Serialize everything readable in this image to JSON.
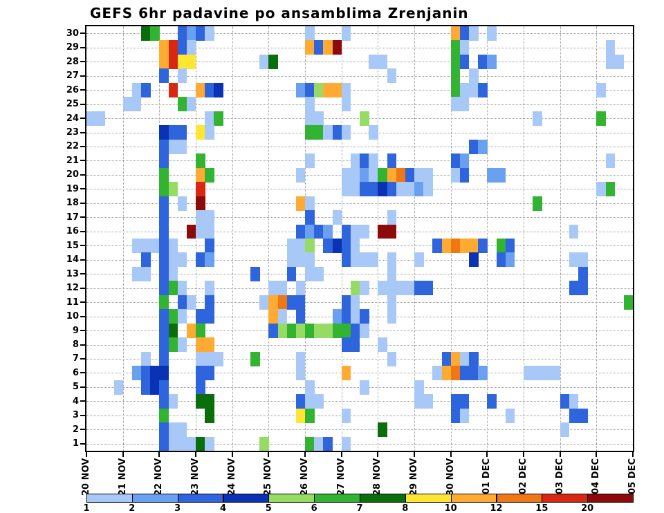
{
  "chart_data": {
    "type": "heatmap",
    "title": "GEFS 6hr padavine po ansamblima Zrenjanin",
    "x_tick_labels": [
      "20 NOV",
      "21 NOV",
      "22 NOV",
      "23 NOV",
      "24 NOV",
      "25 NOV",
      "26 NOV",
      "27 NOV",
      "28 NOV",
      "29 NOV",
      "30 NOV",
      "01 DEC",
      "02 DEC",
      "03 DEC",
      "04 DEC",
      "05 DEC"
    ],
    "steps_per_day": 4,
    "n_cols": 60,
    "ensemble_members": [
      1,
      2,
      3,
      4,
      5,
      6,
      7,
      8,
      9,
      10,
      11,
      12,
      13,
      14,
      15,
      16,
      17,
      18,
      19,
      20,
      21,
      22,
      23,
      24,
      25,
      26,
      27,
      28,
      29,
      30
    ],
    "grid": true,
    "background_color": "#ffffff",
    "axis_color": "#000000",
    "gridline_color": "#9a9a9a",
    "colorbar": {
      "position": "bottom",
      "tick_labels": [
        "1",
        "2",
        "3",
        "4",
        "5",
        "6",
        "7",
        "8",
        "10",
        "12",
        "15",
        "20"
      ],
      "levels": [
        1,
        2,
        3,
        4,
        5,
        6,
        7,
        8,
        10,
        12,
        15,
        20
      ],
      "colors": [
        "#a8c8f8",
        "#6aa0f0",
        "#2e64dc",
        "#0a32b4",
        "#96dc64",
        "#32b432",
        "#0a6e0a",
        "#ffe632",
        "#ffaa32",
        "#f07814",
        "#d82814",
        "#8c0a0a"
      ]
    },
    "cells_format": "[ensemble_member, six_hour_step_index_from_20NOV, level_mm]",
    "cells": [
      [
        30,
        6,
        7
      ],
      [
        30,
        7,
        6
      ],
      [
        30,
        10,
        3
      ],
      [
        30,
        11,
        2
      ],
      [
        30,
        12,
        3
      ],
      [
        30,
        13,
        1
      ],
      [
        30,
        24,
        1
      ],
      [
        30,
        28,
        1
      ],
      [
        30,
        40,
        10
      ],
      [
        30,
        41,
        3
      ],
      [
        30,
        42,
        1
      ],
      [
        30,
        44,
        1
      ],
      [
        29,
        8,
        10
      ],
      [
        29,
        9,
        15
      ],
      [
        29,
        10,
        3
      ],
      [
        29,
        11,
        1
      ],
      [
        29,
        24,
        10
      ],
      [
        29,
        25,
        3
      ],
      [
        29,
        26,
        10
      ],
      [
        29,
        27,
        20
      ],
      [
        29,
        40,
        6
      ],
      [
        29,
        41,
        1
      ],
      [
        29,
        57,
        1
      ],
      [
        28,
        8,
        10
      ],
      [
        28,
        9,
        15
      ],
      [
        28,
        10,
        8
      ],
      [
        28,
        11,
        8
      ],
      [
        28,
        19,
        1
      ],
      [
        28,
        20,
        7
      ],
      [
        28,
        31,
        1
      ],
      [
        28,
        32,
        1
      ],
      [
        28,
        40,
        6
      ],
      [
        28,
        41,
        3
      ],
      [
        28,
        43,
        3
      ],
      [
        28,
        44,
        2
      ],
      [
        28,
        57,
        1
      ],
      [
        28,
        58,
        1
      ],
      [
        27,
        8,
        3
      ],
      [
        27,
        10,
        1
      ],
      [
        27,
        33,
        1
      ],
      [
        27,
        40,
        6
      ],
      [
        27,
        42,
        1
      ],
      [
        26,
        5,
        1
      ],
      [
        26,
        6,
        3
      ],
      [
        26,
        9,
        15
      ],
      [
        26,
        12,
        10
      ],
      [
        26,
        13,
        3
      ],
      [
        26,
        14,
        4
      ],
      [
        26,
        23,
        2
      ],
      [
        26,
        24,
        3
      ],
      [
        26,
        25,
        5
      ],
      [
        26,
        26,
        10
      ],
      [
        26,
        27,
        10
      ],
      [
        26,
        28,
        1
      ],
      [
        26,
        40,
        6
      ],
      [
        26,
        41,
        1
      ],
      [
        26,
        42,
        1
      ],
      [
        26,
        43,
        3
      ],
      [
        26,
        56,
        1
      ],
      [
        25,
        4,
        1
      ],
      [
        25,
        5,
        1
      ],
      [
        25,
        10,
        6
      ],
      [
        25,
        11,
        1
      ],
      [
        25,
        24,
        1
      ],
      [
        25,
        28,
        1
      ],
      [
        25,
        40,
        1
      ],
      [
        25,
        41,
        1
      ],
      [
        24,
        0,
        1
      ],
      [
        24,
        1,
        1
      ],
      [
        24,
        13,
        1
      ],
      [
        24,
        14,
        6
      ],
      [
        24,
        24,
        1
      ],
      [
        24,
        25,
        1
      ],
      [
        24,
        30,
        5
      ],
      [
        24,
        49,
        1
      ],
      [
        24,
        56,
        6
      ],
      [
        23,
        8,
        4
      ],
      [
        23,
        9,
        3
      ],
      [
        23,
        10,
        3
      ],
      [
        23,
        12,
        8
      ],
      [
        23,
        13,
        1
      ],
      [
        23,
        24,
        6
      ],
      [
        23,
        25,
        6
      ],
      [
        23,
        26,
        1
      ],
      [
        23,
        27,
        3
      ],
      [
        23,
        28,
        1
      ],
      [
        23,
        31,
        1
      ],
      [
        22,
        8,
        3
      ],
      [
        22,
        9,
        1
      ],
      [
        22,
        10,
        1
      ],
      [
        22,
        42,
        3
      ],
      [
        22,
        43,
        2
      ],
      [
        21,
        8,
        3
      ],
      [
        21,
        12,
        6
      ],
      [
        21,
        24,
        1
      ],
      [
        21,
        29,
        1
      ],
      [
        21,
        30,
        3
      ],
      [
        21,
        31,
        1
      ],
      [
        21,
        33,
        3
      ],
      [
        21,
        40,
        3
      ],
      [
        21,
        41,
        2
      ],
      [
        21,
        57,
        1
      ],
      [
        20,
        8,
        6
      ],
      [
        20,
        12,
        10
      ],
      [
        20,
        13,
        6
      ],
      [
        20,
        23,
        1
      ],
      [
        20,
        28,
        1
      ],
      [
        20,
        29,
        1
      ],
      [
        20,
        30,
        2
      ],
      [
        20,
        31,
        1
      ],
      [
        20,
        32,
        6
      ],
      [
        20,
        33,
        10
      ],
      [
        20,
        34,
        12
      ],
      [
        20,
        35,
        3
      ],
      [
        20,
        36,
        1
      ],
      [
        20,
        37,
        1
      ],
      [
        20,
        40,
        1
      ],
      [
        20,
        41,
        3
      ],
      [
        20,
        44,
        2
      ],
      [
        20,
        45,
        2
      ],
      [
        19,
        8,
        6
      ],
      [
        19,
        9,
        5
      ],
      [
        19,
        12,
        15
      ],
      [
        19,
        28,
        1
      ],
      [
        19,
        29,
        1
      ],
      [
        19,
        30,
        3
      ],
      [
        19,
        31,
        3
      ],
      [
        19,
        32,
        4
      ],
      [
        19,
        33,
        3
      ],
      [
        19,
        34,
        1
      ],
      [
        19,
        35,
        1
      ],
      [
        19,
        36,
        2
      ],
      [
        19,
        37,
        1
      ],
      [
        19,
        56,
        1
      ],
      [
        19,
        57,
        6
      ],
      [
        18,
        8,
        3
      ],
      [
        18,
        10,
        1
      ],
      [
        18,
        12,
        20
      ],
      [
        18,
        23,
        10
      ],
      [
        18,
        24,
        1
      ],
      [
        18,
        49,
        6
      ],
      [
        17,
        8,
        3
      ],
      [
        17,
        12,
        1
      ],
      [
        17,
        13,
        1
      ],
      [
        17,
        24,
        3
      ],
      [
        17,
        27,
        1
      ],
      [
        17,
        33,
        1
      ],
      [
        16,
        8,
        3
      ],
      [
        16,
        11,
        20
      ],
      [
        16,
        12,
        1
      ],
      [
        16,
        13,
        1
      ],
      [
        16,
        23,
        3
      ],
      [
        16,
        24,
        2
      ],
      [
        16,
        25,
        3
      ],
      [
        16,
        26,
        2
      ],
      [
        16,
        28,
        3
      ],
      [
        16,
        29,
        1
      ],
      [
        16,
        30,
        1
      ],
      [
        16,
        32,
        20
      ],
      [
        16,
        33,
        20
      ],
      [
        16,
        53,
        1
      ],
      [
        15,
        5,
        1
      ],
      [
        15,
        6,
        1
      ],
      [
        15,
        7,
        1
      ],
      [
        15,
        8,
        3
      ],
      [
        15,
        9,
        1
      ],
      [
        15,
        13,
        3
      ],
      [
        15,
        22,
        1
      ],
      [
        15,
        23,
        1
      ],
      [
        15,
        24,
        5
      ],
      [
        15,
        26,
        3
      ],
      [
        15,
        27,
        4
      ],
      [
        15,
        28,
        3
      ],
      [
        15,
        29,
        1
      ],
      [
        15,
        38,
        3
      ],
      [
        15,
        39,
        10
      ],
      [
        15,
        40,
        12
      ],
      [
        15,
        41,
        10
      ],
      [
        15,
        42,
        10
      ],
      [
        15,
        43,
        3
      ],
      [
        15,
        45,
        6
      ],
      [
        15,
        46,
        3
      ],
      [
        14,
        6,
        3
      ],
      [
        14,
        8,
        3
      ],
      [
        14,
        9,
        1
      ],
      [
        14,
        10,
        1
      ],
      [
        14,
        12,
        3
      ],
      [
        14,
        13,
        2
      ],
      [
        14,
        22,
        1
      ],
      [
        14,
        23,
        1
      ],
      [
        14,
        24,
        1
      ],
      [
        14,
        28,
        3
      ],
      [
        14,
        29,
        1
      ],
      [
        14,
        30,
        1
      ],
      [
        14,
        31,
        1
      ],
      [
        14,
        33,
        1
      ],
      [
        14,
        36,
        1
      ],
      [
        14,
        42,
        4
      ],
      [
        14,
        45,
        3
      ],
      [
        14,
        46,
        2
      ],
      [
        14,
        53,
        1
      ],
      [
        14,
        54,
        1
      ],
      [
        13,
        5,
        1
      ],
      [
        13,
        6,
        1
      ],
      [
        13,
        8,
        3
      ],
      [
        13,
        9,
        1
      ],
      [
        13,
        18,
        3
      ],
      [
        13,
        22,
        3
      ],
      [
        13,
        24,
        1
      ],
      [
        13,
        25,
        1
      ],
      [
        13,
        33,
        1
      ],
      [
        13,
        54,
        3
      ],
      [
        12,
        8,
        3
      ],
      [
        12,
        9,
        6
      ],
      [
        12,
        10,
        1
      ],
      [
        12,
        13,
        1
      ],
      [
        12,
        20,
        1
      ],
      [
        12,
        21,
        1
      ],
      [
        12,
        23,
        1
      ],
      [
        12,
        29,
        5
      ],
      [
        12,
        30,
        1
      ],
      [
        12,
        32,
        1
      ],
      [
        12,
        33,
        1
      ],
      [
        12,
        34,
        1
      ],
      [
        12,
        35,
        1
      ],
      [
        12,
        36,
        3
      ],
      [
        12,
        37,
        3
      ],
      [
        12,
        53,
        3
      ],
      [
        12,
        54,
        3
      ],
      [
        11,
        8,
        6
      ],
      [
        11,
        10,
        3
      ],
      [
        11,
        11,
        1
      ],
      [
        11,
        13,
        3
      ],
      [
        11,
        19,
        1
      ],
      [
        11,
        20,
        10
      ],
      [
        11,
        21,
        12
      ],
      [
        11,
        22,
        3
      ],
      [
        11,
        23,
        3
      ],
      [
        11,
        28,
        3
      ],
      [
        11,
        29,
        1
      ],
      [
        11,
        33,
        1
      ],
      [
        11,
        59,
        6
      ],
      [
        10,
        8,
        3
      ],
      [
        10,
        9,
        6
      ],
      [
        10,
        10,
        1
      ],
      [
        10,
        12,
        3
      ],
      [
        10,
        13,
        3
      ],
      [
        10,
        20,
        10
      ],
      [
        10,
        21,
        1
      ],
      [
        10,
        23,
        3
      ],
      [
        10,
        27,
        2
      ],
      [
        10,
        28,
        3
      ],
      [
        10,
        29,
        1
      ],
      [
        10,
        30,
        3
      ],
      [
        10,
        33,
        1
      ],
      [
        9,
        8,
        3
      ],
      [
        9,
        9,
        7
      ],
      [
        9,
        11,
        10
      ],
      [
        9,
        12,
        6
      ],
      [
        9,
        20,
        3
      ],
      [
        9,
        21,
        5
      ],
      [
        9,
        22,
        6
      ],
      [
        9,
        23,
        5
      ],
      [
        9,
        24,
        6
      ],
      [
        9,
        25,
        5
      ],
      [
        9,
        26,
        5
      ],
      [
        9,
        27,
        6
      ],
      [
        9,
        28,
        6
      ],
      [
        9,
        29,
        3
      ],
      [
        9,
        30,
        1
      ],
      [
        8,
        8,
        3
      ],
      [
        8,
        9,
        6
      ],
      [
        8,
        10,
        1
      ],
      [
        8,
        12,
        10
      ],
      [
        8,
        13,
        10
      ],
      [
        8,
        28,
        3
      ],
      [
        8,
        29,
        3
      ],
      [
        8,
        32,
        1
      ],
      [
        7,
        6,
        1
      ],
      [
        7,
        8,
        3
      ],
      [
        7,
        12,
        1
      ],
      [
        7,
        13,
        1
      ],
      [
        7,
        14,
        1
      ],
      [
        7,
        18,
        6
      ],
      [
        7,
        23,
        1
      ],
      [
        7,
        33,
        1
      ],
      [
        7,
        39,
        3
      ],
      [
        7,
        40,
        10
      ],
      [
        7,
        41,
        1
      ],
      [
        7,
        42,
        3
      ],
      [
        6,
        5,
        2
      ],
      [
        6,
        6,
        3
      ],
      [
        6,
        7,
        4
      ],
      [
        6,
        8,
        4
      ],
      [
        6,
        12,
        3
      ],
      [
        6,
        13,
        3
      ],
      [
        6,
        23,
        1
      ],
      [
        6,
        28,
        10
      ],
      [
        6,
        38,
        1
      ],
      [
        6,
        39,
        10
      ],
      [
        6,
        40,
        12
      ],
      [
        6,
        41,
        3
      ],
      [
        6,
        42,
        3
      ],
      [
        6,
        43,
        2
      ],
      [
        6,
        48,
        1
      ],
      [
        6,
        49,
        1
      ],
      [
        6,
        50,
        1
      ],
      [
        6,
        51,
        1
      ],
      [
        5,
        3,
        1
      ],
      [
        5,
        6,
        3
      ],
      [
        5,
        7,
        4
      ],
      [
        5,
        8,
        3
      ],
      [
        5,
        12,
        3
      ],
      [
        5,
        24,
        1
      ],
      [
        5,
        30,
        1
      ],
      [
        5,
        36,
        1
      ],
      [
        4,
        8,
        3
      ],
      [
        4,
        9,
        1
      ],
      [
        4,
        12,
        7
      ],
      [
        4,
        13,
        7
      ],
      [
        4,
        23,
        3
      ],
      [
        4,
        24,
        1
      ],
      [
        4,
        25,
        1
      ],
      [
        4,
        36,
        1
      ],
      [
        4,
        37,
        1
      ],
      [
        4,
        40,
        3
      ],
      [
        4,
        41,
        3
      ],
      [
        4,
        44,
        3
      ],
      [
        4,
        52,
        3
      ],
      [
        4,
        53,
        1
      ],
      [
        3,
        8,
        6
      ],
      [
        3,
        13,
        7
      ],
      [
        3,
        23,
        8
      ],
      [
        3,
        24,
        6
      ],
      [
        3,
        28,
        1
      ],
      [
        3,
        40,
        3
      ],
      [
        3,
        41,
        1
      ],
      [
        3,
        46,
        1
      ],
      [
        3,
        53,
        3
      ],
      [
        3,
        54,
        3
      ],
      [
        2,
        8,
        3
      ],
      [
        2,
        9,
        1
      ],
      [
        2,
        10,
        1
      ],
      [
        2,
        32,
        7
      ],
      [
        2,
        52,
        1
      ],
      [
        1,
        8,
        3
      ],
      [
        1,
        9,
        1
      ],
      [
        1,
        10,
        1
      ],
      [
        1,
        11,
        1
      ],
      [
        1,
        12,
        7
      ],
      [
        1,
        13,
        1
      ],
      [
        1,
        19,
        5
      ],
      [
        1,
        24,
        6
      ],
      [
        1,
        25,
        1
      ],
      [
        1,
        26,
        3
      ],
      [
        1,
        28,
        1
      ]
    ]
  }
}
